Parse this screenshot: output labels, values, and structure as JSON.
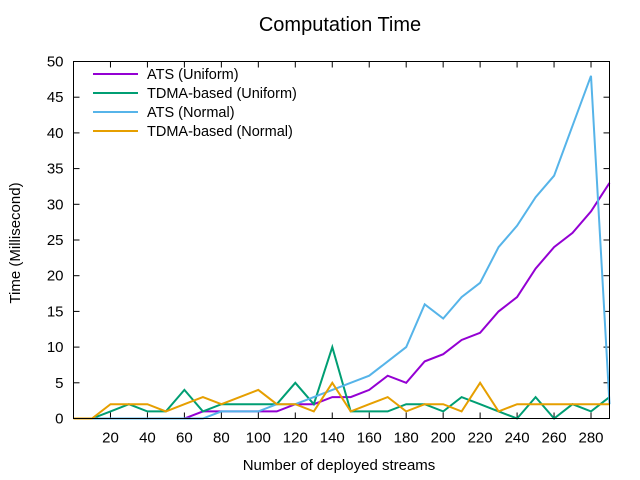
{
  "chart_data": {
    "type": "line",
    "title": "Computation Time",
    "xlabel": "Number of deployed streams",
    "ylabel": "Time (Millisecond)",
    "xlim": [
      0,
      290
    ],
    "ylim": [
      0,
      50
    ],
    "xticks": [
      20,
      40,
      60,
      80,
      100,
      120,
      140,
      160,
      180,
      200,
      220,
      240,
      260,
      280
    ],
    "yticks": [
      0,
      5,
      10,
      15,
      20,
      25,
      30,
      35,
      40,
      45,
      50
    ],
    "grid": false,
    "legend_position": "top-left",
    "x": [
      0,
      10,
      20,
      30,
      40,
      50,
      60,
      70,
      80,
      90,
      100,
      110,
      120,
      130,
      140,
      150,
      160,
      170,
      180,
      190,
      200,
      210,
      220,
      230,
      240,
      250,
      260,
      270,
      280,
      290
    ],
    "series": [
      {
        "name": "ATS (Uniform)",
        "color": "#9400d3",
        "values": [
          0,
          0,
          0,
          0,
          0,
          0,
          0,
          1,
          1,
          1,
          1,
          1,
          2,
          2,
          3,
          3,
          4,
          6,
          5,
          8,
          9,
          11,
          12,
          15,
          17,
          21,
          24,
          26,
          29,
          33
        ]
      },
      {
        "name": "TDMA-based (Uniform)",
        "color": "#009e73",
        "values": [
          0,
          0,
          1,
          2,
          1,
          1,
          4,
          1,
          2,
          2,
          2,
          2,
          5,
          2,
          10,
          1,
          1,
          1,
          2,
          2,
          1,
          3,
          2,
          1,
          0,
          3,
          0,
          2,
          1,
          3
        ]
      },
      {
        "name": "ATS (Normal)",
        "color": "#56b4e9",
        "values": [
          0,
          0,
          0,
          0,
          0,
          0,
          0,
          0,
          1,
          1,
          1,
          2,
          2,
          3,
          4,
          5,
          6,
          8,
          10,
          16,
          14,
          17,
          19,
          24,
          27,
          31,
          34,
          41,
          48,
          2
        ]
      },
      {
        "name": "TDMA-based (Normal)",
        "color": "#e69f00",
        "values": [
          0,
          0,
          2,
          2,
          2,
          1,
          2,
          3,
          2,
          3,
          4,
          2,
          2,
          1,
          5,
          1,
          2,
          3,
          1,
          2,
          2,
          1,
          5,
          1,
          2,
          2,
          2,
          2,
          2,
          2
        ]
      }
    ]
  }
}
